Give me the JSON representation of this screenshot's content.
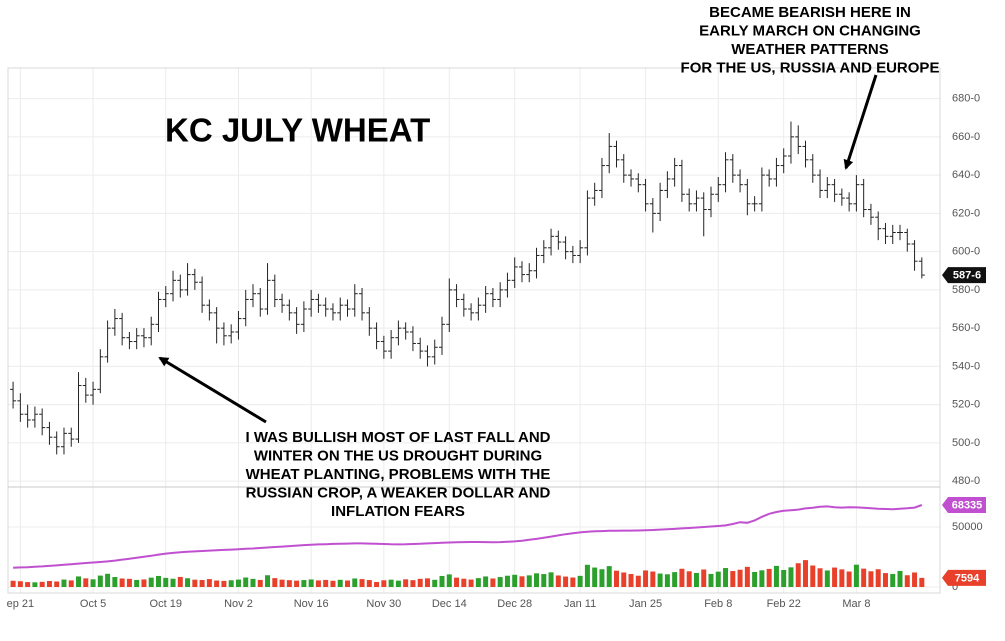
{
  "chart_data": {
    "type": "ohlc",
    "title": "KC JULY WHEAT",
    "annotations": [
      {
        "lines": [
          "I WAS BULLISH MOST OF LAST FALL AND",
          "WINTER ON THE US DROUGHT DURING",
          "WHEAT PLANTING, PROBLEMS WITH THE",
          "RUSSIAN CROP, A WEAKER DOLLAR AND",
          "INFLATION FEARS"
        ]
      },
      {
        "lines": [
          "BECAME BEARISH HERE IN",
          "EARLY MARCH ON CHANGING",
          "WEATHER PATTERNS",
          "FOR THE US, RUSSIA AND EUROPE"
        ]
      }
    ],
    "open": [
      528,
      522,
      515,
      512,
      515,
      508,
      503,
      498,
      505,
      502,
      530,
      525,
      528,
      545,
      560,
      565,
      555,
      553,
      556,
      555,
      562,
      575,
      578,
      585,
      580,
      588,
      584,
      572,
      568,
      560,
      556,
      558,
      565,
      575,
      578,
      570,
      585,
      575,
      572,
      568,
      562,
      570,
      575,
      572,
      570,
      568,
      572,
      570,
      578,
      568,
      560,
      553,
      548,
      555,
      560,
      558,
      552,
      548,
      545,
      550,
      562,
      580,
      575,
      570,
      568,
      572,
      578,
      575,
      580,
      585,
      592,
      588,
      590,
      598,
      602,
      608,
      605,
      600,
      598,
      602,
      628,
      632,
      645,
      655,
      648,
      640,
      638,
      635,
      625,
      620,
      632,
      638,
      645,
      630,
      625,
      628,
      622,
      630,
      635,
      648,
      640,
      635,
      625,
      625,
      640,
      638,
      645,
      650,
      660,
      655,
      648,
      640,
      632,
      635,
      630,
      628,
      625,
      635,
      622,
      618,
      612,
      608,
      610,
      610,
      604,
      595
    ],
    "high": [
      532,
      526,
      520,
      519,
      518,
      511,
      506,
      508,
      508,
      537,
      534,
      532,
      549,
      564,
      570,
      568,
      558,
      560,
      560,
      566,
      579,
      582,
      590,
      588,
      594,
      591,
      587,
      575,
      571,
      563,
      562,
      569,
      580,
      583,
      581,
      594,
      588,
      578,
      575,
      571,
      574,
      580,
      578,
      576,
      573,
      576,
      575,
      583,
      581,
      571,
      563,
      556,
      559,
      564,
      563,
      561,
      555,
      551,
      554,
      566,
      586,
      583,
      578,
      573,
      576,
      582,
      581,
      584,
      589,
      597,
      595,
      594,
      602,
      606,
      612,
      611,
      608,
      603,
      606,
      632,
      636,
      649,
      662,
      658,
      651,
      643,
      641,
      638,
      628,
      636,
      642,
      649,
      648,
      633,
      632,
      631,
      634,
      639,
      652,
      651,
      643,
      638,
      629,
      644,
      643,
      649,
      654,
      668,
      666,
      658,
      651,
      643,
      639,
      638,
      633,
      631,
      640,
      638,
      625,
      621,
      615,
      614,
      614,
      612,
      606,
      597
    ],
    "low": [
      518,
      511,
      508,
      508,
      504,
      499,
      494,
      494,
      498,
      500,
      521,
      520,
      526,
      542,
      556,
      551,
      549,
      549,
      550,
      551,
      558,
      571,
      574,
      576,
      577,
      580,
      568,
      564,
      552,
      551,
      552,
      554,
      561,
      571,
      566,
      567,
      571,
      568,
      564,
      557,
      558,
      566,
      568,
      566,
      564,
      564,
      566,
      566,
      564,
      556,
      549,
      544,
      544,
      551,
      554,
      548,
      544,
      540,
      541,
      546,
      558,
      571,
      566,
      564,
      564,
      568,
      571,
      571,
      576,
      581,
      584,
      584,
      586,
      594,
      598,
      601,
      596,
      594,
      594,
      598,
      624,
      628,
      641,
      644,
      636,
      634,
      631,
      621,
      610,
      616,
      628,
      634,
      626,
      621,
      621,
      608,
      618,
      626,
      631,
      636,
      631,
      619,
      621,
      621,
      634,
      634,
      641,
      646,
      651,
      644,
      636,
      628,
      628,
      626,
      624,
      621,
      621,
      618,
      614,
      606,
      604,
      604,
      606,
      600,
      590,
      586
    ],
    "close": [
      522,
      515,
      512,
      515,
      508,
      503,
      498,
      505,
      502,
      530,
      525,
      528,
      545,
      560,
      565,
      555,
      553,
      556,
      555,
      562,
      575,
      578,
      585,
      580,
      588,
      584,
      572,
      568,
      560,
      556,
      558,
      565,
      575,
      578,
      570,
      585,
      575,
      572,
      568,
      562,
      570,
      575,
      572,
      570,
      568,
      572,
      570,
      578,
      568,
      560,
      553,
      548,
      555,
      560,
      558,
      552,
      548,
      545,
      550,
      562,
      580,
      575,
      570,
      568,
      572,
      578,
      575,
      580,
      585,
      592,
      588,
      590,
      598,
      602,
      608,
      605,
      600,
      598,
      602,
      628,
      632,
      645,
      655,
      648,
      640,
      638,
      635,
      625,
      620,
      632,
      638,
      645,
      630,
      625,
      628,
      622,
      630,
      635,
      648,
      640,
      635,
      625,
      625,
      640,
      638,
      645,
      650,
      660,
      655,
      648,
      640,
      632,
      635,
      630,
      628,
      625,
      635,
      622,
      618,
      612,
      608,
      610,
      610,
      604,
      595,
      587.75
    ],
    "last_price": {
      "value": 587.75,
      "label": "587-6"
    },
    "bar_color": "#222222",
    "volume": {
      "values": [
        5200,
        4800,
        4100,
        3900,
        4300,
        5000,
        4600,
        6200,
        5500,
        8800,
        7200,
        6400,
        9500,
        11000,
        8300,
        7100,
        6800,
        5900,
        6300,
        7800,
        9200,
        7600,
        6900,
        8400,
        7300,
        6100,
        5800,
        6600,
        5400,
        5100,
        5600,
        6200,
        7900,
        6800,
        5900,
        9800,
        7400,
        6100,
        5700,
        5300,
        5800,
        6300,
        5500,
        5900,
        5200,
        6000,
        5400,
        7100,
        6600,
        5800,
        4200,
        5600,
        6100,
        5300,
        6400,
        5700,
        6800,
        7200,
        6000,
        9200,
        10500,
        7800,
        6900,
        6200,
        7400,
        8800,
        7100,
        8300,
        9400,
        10200,
        8900,
        9700,
        11400,
        10800,
        12200,
        9600,
        8700,
        7900,
        9300,
        18500,
        16200,
        14800,
        17400,
        13600,
        12100,
        10800,
        9400,
        13800,
        12900,
        11200,
        10600,
        12400,
        15200,
        13100,
        11700,
        14600,
        10900,
        12800,
        15800,
        13300,
        14400,
        16800,
        12500,
        13900,
        15100,
        17600,
        14200,
        16400,
        19800,
        22400,
        17900,
        15600,
        13800,
        16200,
        14700,
        12900,
        18600,
        15300,
        13100,
        14800,
        11600,
        10900,
        13400,
        9800,
        12100,
        7594
      ],
      "up_color": "#2ca02c",
      "down_color": "#e8402a"
    },
    "open_interest": {
      "values": [
        16000,
        16300,
        16500,
        16900,
        17200,
        17600,
        18000,
        18500,
        19000,
        19500,
        20000,
        20400,
        20800,
        21300,
        22000,
        22800,
        23500,
        24300,
        25200,
        26000,
        27000,
        27800,
        28400,
        28900,
        29300,
        29700,
        30000,
        30300,
        30600,
        30900,
        31200,
        31500,
        31800,
        32100,
        32500,
        32900,
        33300,
        33700,
        34100,
        34500,
        34900,
        35200,
        35500,
        35700,
        35900,
        36100,
        36200,
        36300,
        36300,
        36200,
        36000,
        35800,
        35600,
        35500,
        35600,
        35800,
        36000,
        36300,
        36600,
        36900,
        37100,
        37300,
        37400,
        37500,
        37500,
        37400,
        37300,
        37400,
        37700,
        38000,
        38600,
        39300,
        40100,
        41000,
        42000,
        43000,
        44000,
        44800,
        45500,
        46000,
        46400,
        46600,
        46800,
        46900,
        47000,
        47000,
        47100,
        47300,
        47500,
        47800,
        48100,
        48400,
        48800,
        49200,
        49600,
        50000,
        50400,
        50800,
        51300,
        52500,
        54000,
        53500,
        55500,
        58500,
        61000,
        62500,
        63500,
        64000,
        64500,
        65500,
        66000,
        66800,
        67200,
        66500,
        66200,
        66500,
        66300,
        66000,
        65600,
        65200,
        65000,
        64800,
        65200,
        65600,
        66200,
        68335
      ],
      "color": "#c050d0"
    },
    "xlim": [
      -0.7,
      127.5
    ],
    "xticks": [
      {
        "value": 1,
        "label": "ep 21"
      },
      {
        "value": 11,
        "label": "Oct 5"
      },
      {
        "value": 21,
        "label": "Oct 19"
      },
      {
        "value": 31,
        "label": "Nov 2"
      },
      {
        "value": 41,
        "label": "Nov 16"
      },
      {
        "value": 51,
        "label": "Nov 30"
      },
      {
        "value": 60,
        "label": "Dec 14"
      },
      {
        "value": 69,
        "label": "Dec 28"
      },
      {
        "value": 78,
        "label": "Jan 11"
      },
      {
        "value": 87,
        "label": "Jan 25"
      },
      {
        "value": 97,
        "label": "Feb 8"
      },
      {
        "value": 106,
        "label": "Feb 22"
      },
      {
        "value": 116,
        "label": "Mar 8"
      }
    ],
    "ylim": [
      478,
      696
    ],
    "yticks": [
      {
        "value": 480,
        "label": "480-0"
      },
      {
        "value": 500,
        "label": "500-0"
      },
      {
        "value": 520,
        "label": "520-0"
      },
      {
        "value": 540,
        "label": "540-0"
      },
      {
        "value": 560,
        "label": "560-0"
      },
      {
        "value": 580,
        "label": "580-0"
      },
      {
        "value": 600,
        "label": "600-0"
      },
      {
        "value": 620,
        "label": "620-0"
      },
      {
        "value": 640,
        "label": "640-0"
      },
      {
        "value": 660,
        "label": "660-0"
      },
      {
        "value": 680,
        "label": "680-0"
      }
    ],
    "y2lim": [
      -5000,
      82500
    ],
    "y2ticks": [
      0,
      50000
    ],
    "grid": true
  }
}
